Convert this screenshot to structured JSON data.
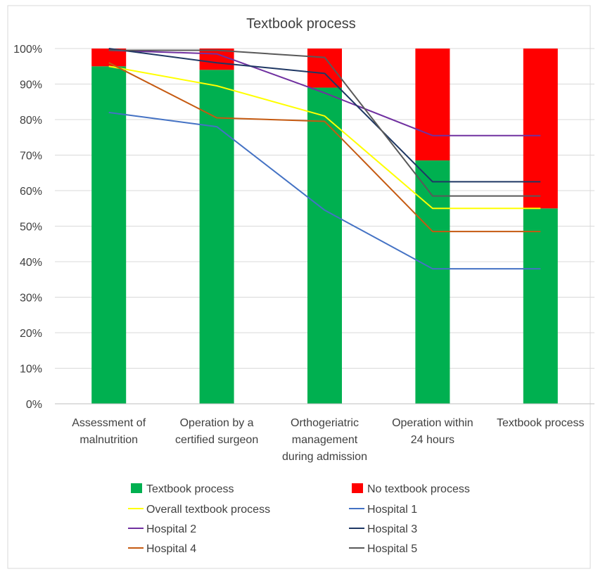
{
  "chart_data": {
    "type": "bar",
    "title": "Textbook process",
    "categories": [
      [
        "Assessment of",
        "malnutrition"
      ],
      [
        "Operation by a",
        "certified surgeon"
      ],
      [
        "Orthogeriatric",
        "management",
        "during admission"
      ],
      [
        "Operation within",
        "24 hours"
      ],
      [
        "Textbook process"
      ]
    ],
    "ylim": [
      0,
      100
    ],
    "yticks": [
      "0%",
      "10%",
      "20%",
      "30%",
      "40%",
      "50%",
      "60%",
      "70%",
      "80%",
      "90%",
      "100%"
    ],
    "grid": true,
    "stacked": true,
    "bar_series": [
      {
        "name": "Textbook process",
        "color": "#00B050",
        "values": [
          95,
          94,
          89,
          68.5,
          55
        ]
      },
      {
        "name": "No textbook process",
        "color": "#FF0000",
        "values": [
          5,
          6,
          11,
          31.5,
          45
        ]
      }
    ],
    "line_series": [
      {
        "name": "Overall textbook process",
        "color": "#FFFF00",
        "values": [
          95,
          89.5,
          81,
          55,
          55
        ]
      },
      {
        "name": "Hospital 1",
        "color": "#4472C4",
        "values": [
          82,
          78,
          54.5,
          38,
          38
        ]
      },
      {
        "name": "Hospital 2",
        "color": "#7030A0",
        "values": [
          99.5,
          98.5,
          87.5,
          75.5,
          75.5
        ]
      },
      {
        "name": "Hospital 3",
        "color": "#1F3864",
        "values": [
          100,
          96,
          93,
          62.5,
          62.5
        ]
      },
      {
        "name": "Hospital 4",
        "color": "#C55A11",
        "values": [
          96,
          80.5,
          79.5,
          48.5,
          48.5
        ]
      },
      {
        "name": "Hospital 5",
        "color": "#595959",
        "values": [
          99.5,
          99.5,
          97.5,
          58.5,
          58.5
        ]
      }
    ],
    "legend_position": "bottom"
  }
}
